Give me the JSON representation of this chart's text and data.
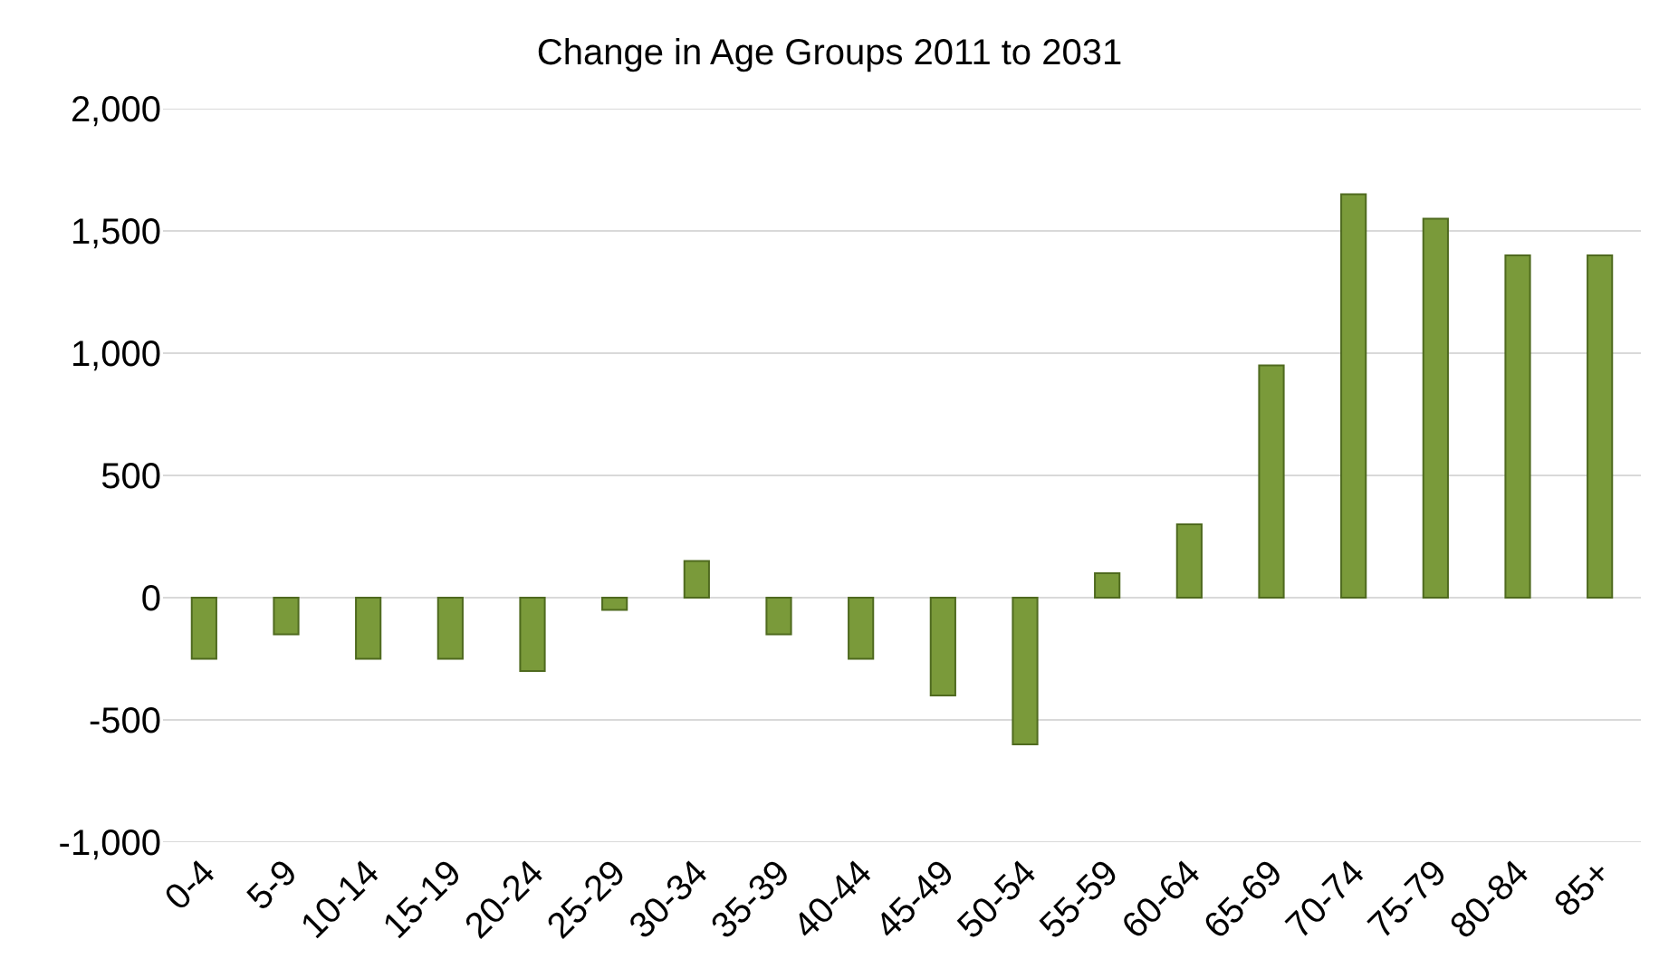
{
  "chart_data": {
    "type": "bar",
    "title": "Change in Age Groups 2011 to 2031",
    "categories": [
      "0-4",
      "5-9",
      "10-14",
      "15-19",
      "20-24",
      "25-29",
      "30-34",
      "35-39",
      "40-44",
      "45-49",
      "50-54",
      "55-59",
      "60-64",
      "65-69",
      "70-74",
      "75-79",
      "80-84",
      "85+"
    ],
    "values": [
      -250,
      -150,
      -250,
      -250,
      -300,
      -50,
      150,
      -150,
      -250,
      -400,
      -600,
      100,
      300,
      950,
      1650,
      1550,
      1400,
      1400
    ],
    "color": "#7a9a3a",
    "ylim": [
      -1000,
      2000
    ],
    "yticks": [
      {
        "value": -1000,
        "label": "-1,000"
      },
      {
        "value": -500,
        "label": "-500"
      },
      0,
      500,
      {
        "value": 1000,
        "label": "1,000"
      },
      {
        "value": 1500,
        "label": "1,500"
      },
      {
        "value": 2000,
        "label": "2,000"
      }
    ],
    "grid": "y"
  }
}
